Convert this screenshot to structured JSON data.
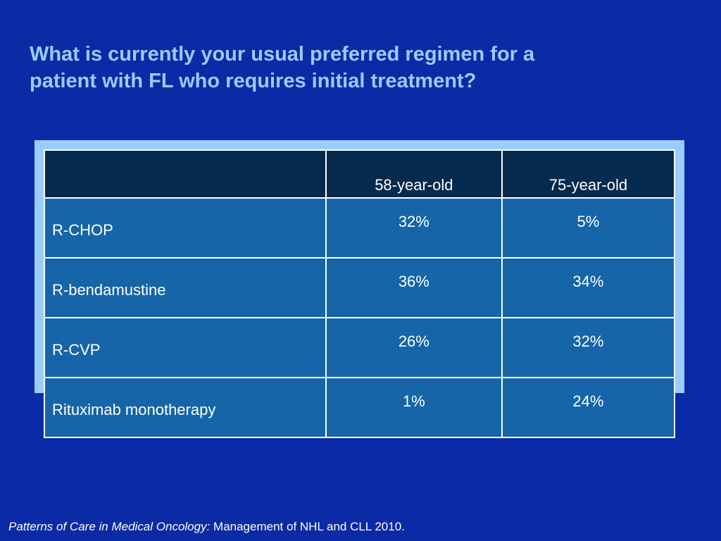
{
  "slide": {
    "title_line1": "What is currently your usual preferred regimen for a",
    "title_line2": "patient with FL who requires initial treatment?"
  },
  "table": {
    "headers": [
      "",
      "58-year-old",
      "75-year-old"
    ],
    "rows": [
      {
        "label": "R-CHOP",
        "values": [
          "32%",
          "5%"
        ]
      },
      {
        "label": "R-bendamustine",
        "values": [
          "36%",
          "34%"
        ]
      },
      {
        "label": "R-CVP",
        "values": [
          "26%",
          "32%"
        ]
      },
      {
        "label": "Rituximab monotherapy",
        "values": [
          "1%",
          "24%"
        ]
      }
    ]
  },
  "footnote": {
    "source_italic": "Patterns of Care in Medical Oncology:",
    "source_rest": " Management of NHL and CLL 2010."
  },
  "colors": {
    "background": "#0b2aa6",
    "title": "#99ccff",
    "table_frame": "#99ccff",
    "header_fill": "#052a4e",
    "cell_fill": "#1565a8",
    "text": "#ffffff"
  }
}
